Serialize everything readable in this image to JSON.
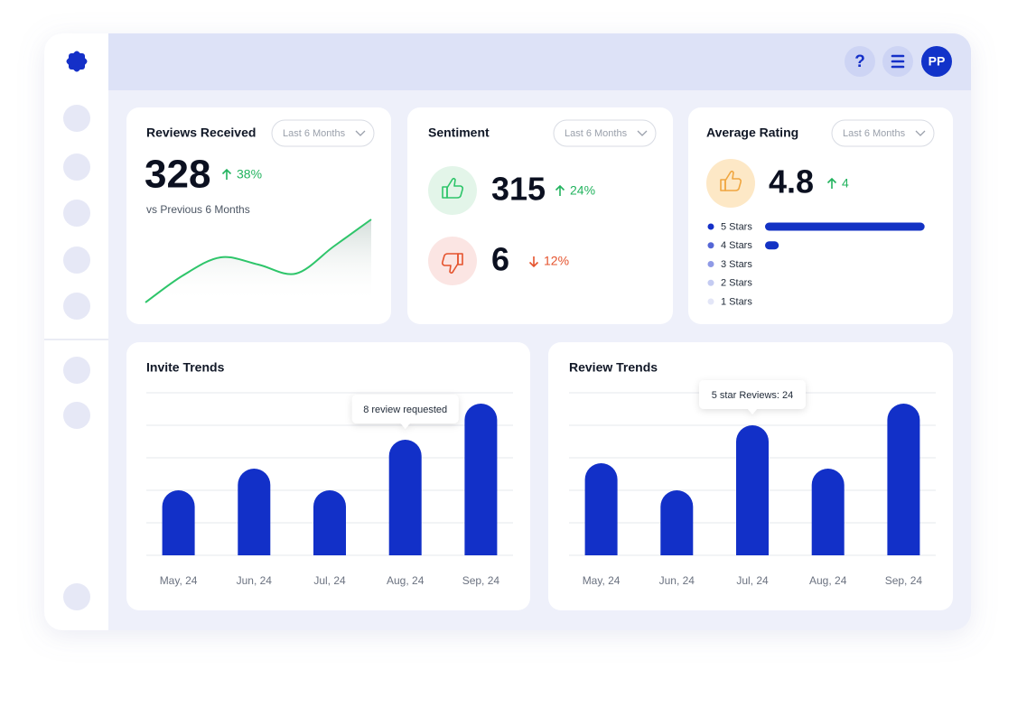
{
  "header": {
    "help": "?",
    "user_initials": "PP"
  },
  "cards": {
    "reviews_received": {
      "title": "Reviews Received",
      "filter": "Last 6 Months",
      "value": 328,
      "change": "38%",
      "subtitle": "vs Previous 6 Months"
    },
    "sentiment": {
      "title": "Sentiment",
      "filter": "Last 6 Months",
      "positive": 315,
      "positive_change": "24%",
      "negative": 6,
      "negative_change": "12%"
    },
    "average_rating": {
      "title": "Average Rating",
      "filter": "Last 6 Months",
      "value": 4.8,
      "change": 4
    }
  },
  "chart_data": [
    {
      "type": "line",
      "values": [
        0,
        30,
        50,
        42,
        32,
        62,
        92
      ],
      "ylim": [
        0,
        100
      ],
      "color": "#2ec56a"
    },
    {
      "type": "bar",
      "title": "Invite Trends",
      "categories": [
        "May, 24",
        "Jun, 24",
        "Jul, 24",
        "Aug, 24",
        "Sep, 24"
      ],
      "values": [
        4.5,
        6,
        4.5,
        8,
        10.5
      ],
      "ylim": [
        0,
        11.25
      ],
      "yticks": [
        0,
        2.25,
        4.5,
        6.75,
        9,
        11.25
      ],
      "grid": true,
      "color": "#1230c8",
      "tooltip": "8 review requested"
    },
    {
      "type": "bar",
      "title": "Review Trends",
      "categories": [
        "May, 24",
        "Jun, 24",
        "Jul, 24",
        "Aug, 24",
        "Sep, 24"
      ],
      "values": [
        17,
        12,
        24,
        16,
        28
      ],
      "ylim": [
        0,
        30
      ],
      "yticks": [
        0,
        6,
        12,
        18,
        24,
        30
      ],
      "grid": true,
      "color": "#1230c8",
      "tooltip": "5 star Reviews: 24"
    },
    {
      "type": "hbar",
      "categories": [
        "5 Stars",
        "4 Stars",
        "3 Stars",
        "2 Stars",
        "1 Stars"
      ],
      "values": [
        93,
        8,
        0,
        0,
        0
      ],
      "xlim": [
        0,
        100
      ],
      "color": "#1332c4",
      "colors": [
        "#1530c8",
        "#5566d6",
        "#8f9ae6",
        "#c4cbf2",
        "#e3e6f7"
      ]
    }
  ]
}
